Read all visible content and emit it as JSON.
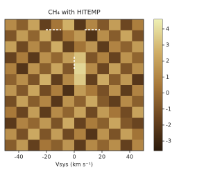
{
  "chart_data": {
    "type": "heatmap",
    "title": "CH₄ with HITEMP",
    "xlabel": "Vsys (km s⁻¹)",
    "xlim": [
      -50,
      50
    ],
    "xticks": [
      -40,
      -20,
      0,
      20,
      40
    ],
    "clim": [
      -3.6,
      4.6
    ],
    "cticks": [
      -3,
      -2,
      -1,
      0,
      1,
      2,
      3,
      4
    ],
    "colormap": [
      "#2b1a0c",
      "#6b4520",
      "#a8793a",
      "#d0ae66",
      "#eef0b4"
    ],
    "z": [
      [
        1.2,
        -0.5,
        2.1,
        -1.8,
        0.4,
        2.6,
        -2.2,
        1.0,
        -0.8,
        1.9,
        -1.5,
        0.7
      ],
      [
        -0.9,
        1.8,
        -0.3,
        2.3,
        -1.6,
        0.5,
        1.7,
        -2.4,
        1.3,
        -0.6,
        2.2,
        -1.1
      ],
      [
        2.0,
        -1.4,
        1.1,
        -0.7,
        2.5,
        -1.9,
        0.3,
        1.6,
        -2.0,
        0.9,
        -0.4,
        1.8
      ],
      [
        -1.7,
        0.6,
        -2.1,
        1.4,
        -0.2,
        1.9,
        3.1,
        -0.9,
        0.8,
        -1.7,
        1.5,
        -0.3
      ],
      [
        0.8,
        -2.3,
        1.5,
        -0.5,
        2.2,
        -0.8,
        3.8,
        1.2,
        -1.5,
        2.0,
        -0.9,
        1.3
      ],
      [
        -0.4,
        1.3,
        -1.0,
        2.6,
        -1.9,
        1.1,
        3.4,
        -1.8,
        2.4,
        -0.6,
        1.7,
        -2.2
      ],
      [
        1.6,
        -0.8,
        2.2,
        -1.3,
        0.7,
        -2.5,
        1.8,
        0.5,
        -1.1,
        1.4,
        -2.0,
        0.9
      ],
      [
        -1.2,
        2.0,
        -0.6,
        1.0,
        -2.2,
        1.5,
        -0.4,
        2.3,
        -0.7,
        -1.9,
        1.2,
        -0.5
      ],
      [
        0.5,
        -1.6,
        1.9,
        -2.0,
        1.2,
        -0.3,
        2.1,
        -1.4,
        1.8,
        0.4,
        -1.3,
        2.1
      ],
      [
        -2.1,
        0.9,
        -0.2,
        1.7,
        -1.0,
        2.4,
        -1.7,
        0.6,
        -0.5,
        2.2,
        -0.8,
        -1.6
      ],
      [
        1.4,
        -1.1,
        2.3,
        -0.9,
        1.9,
        -1.4,
        0.8,
        -2.3,
        1.5,
        -1.0,
        2.0,
        0.3
      ],
      [
        -0.6,
        1.7,
        -1.8,
        0.4,
        -0.5,
        1.6,
        -2.0,
        1.1,
        -0.3,
        1.3,
        -1.8,
        1.0
      ]
    ]
  }
}
